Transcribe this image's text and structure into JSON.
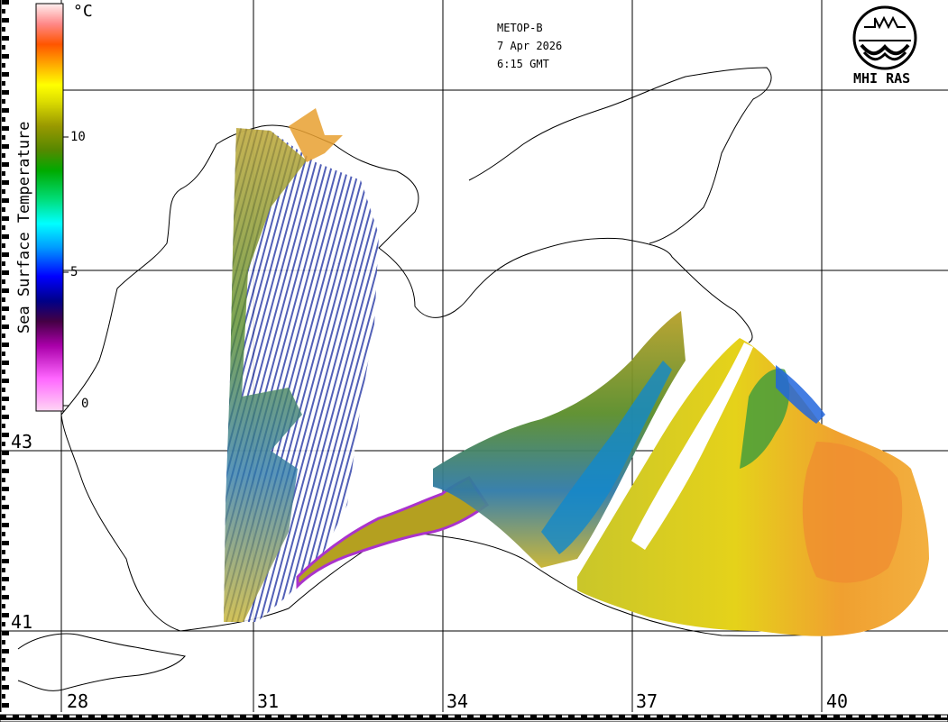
{
  "title": {
    "satellite": "METOP-B",
    "date": "7 Apr 2026",
    "time": "6:15 GMT"
  },
  "logo": {
    "text": "MHI RAS",
    "icon": "mhi-ras-emblem-icon"
  },
  "legend": {
    "title": "Sea Surface Temperature",
    "unit": "°C",
    "ticks": [
      "10",
      "5",
      "0"
    ],
    "colors": [
      "#ffd0f0",
      "#ff55ff",
      "#aa00aa",
      "#550055",
      "#000080",
      "#0000ff",
      "#0088ff",
      "#00ffff",
      "#00cc66",
      "#008800",
      "#66aa00",
      "#999900",
      "#dddd00",
      "#ffff00",
      "#ffaa00",
      "#ff6600",
      "#ff3333",
      "#ff9999",
      "#ffe0e0"
    ]
  },
  "latitude_labels": [
    "43",
    "41"
  ],
  "longitude_labels": [
    "28",
    "31",
    "34",
    "37",
    "40"
  ]
}
